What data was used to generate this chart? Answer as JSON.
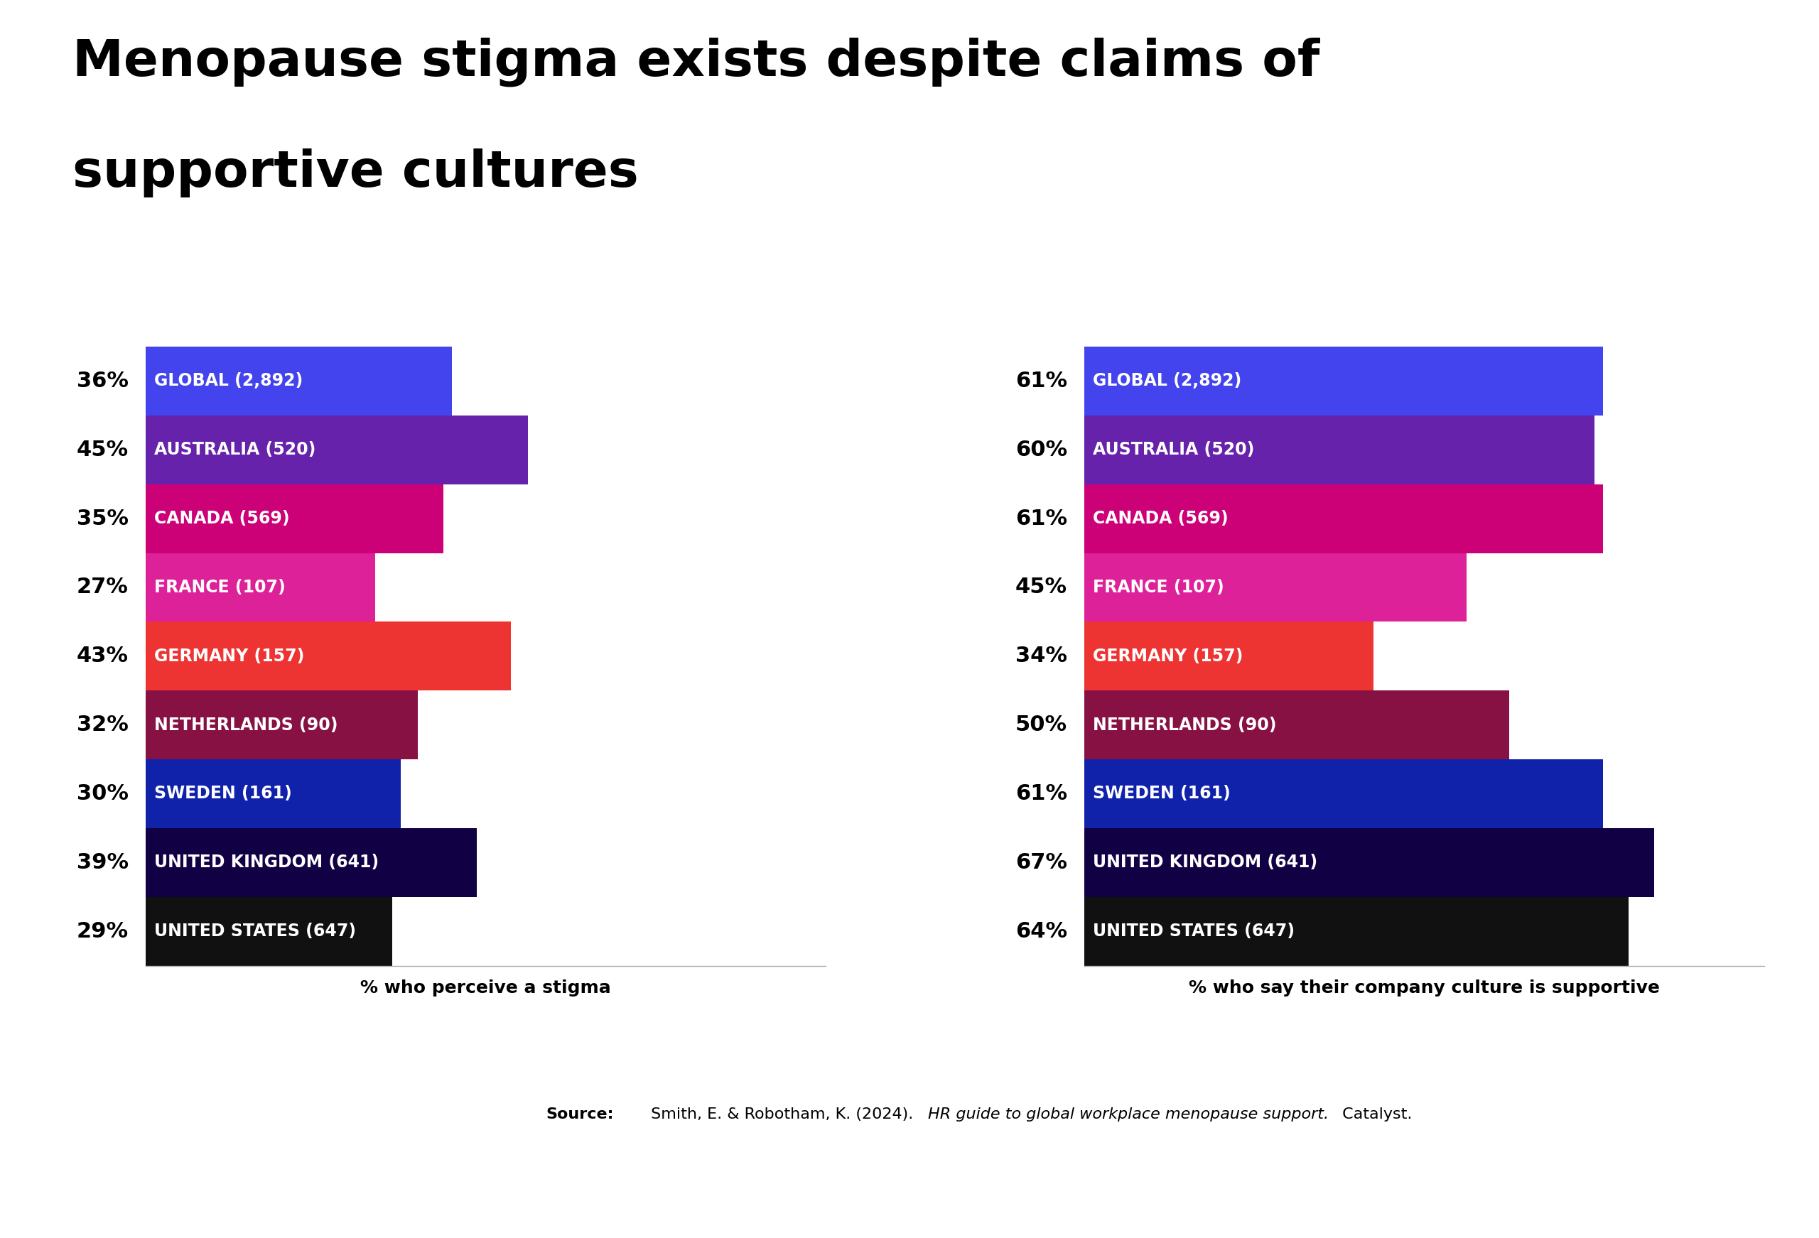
{
  "title_line1": "Menopause stigma exists despite claims of",
  "title_line2": "supportive cultures",
  "categories": [
    "GLOBAL (2,892)",
    "AUSTRALIA (520)",
    "CANADA (569)",
    "FRANCE (107)",
    "GERMANY (157)",
    "NETHERLANDS (90)",
    "SWEDEN (161)",
    "UNITED KINGDOM (641)",
    "UNITED STATES (647)"
  ],
  "stigma_values": [
    36,
    45,
    35,
    27,
    43,
    32,
    30,
    39,
    29
  ],
  "supportive_values": [
    61,
    60,
    61,
    45,
    34,
    50,
    61,
    67,
    64
  ],
  "stigma_labels": [
    "36%",
    "45%",
    "35%",
    "27%",
    "43%",
    "32%",
    "30%",
    "39%",
    "29%"
  ],
  "supportive_labels": [
    "61%",
    "60%",
    "61%",
    "45%",
    "34%",
    "50%",
    "61%",
    "67%",
    "64%"
  ],
  "bar_colors": [
    "#4444EE",
    "#6622AA",
    "#CC0077",
    "#DD2299",
    "#EE3333",
    "#881144",
    "#1122AA",
    "#110044",
    "#111111"
  ],
  "left_xlabel": "% who perceive a stigma",
  "right_xlabel": "% who say their company culture is supportive",
  "background_color": "#FFFFFF",
  "title_fontsize": 52,
  "bar_label_fontsize": 22,
  "category_fontsize": 17,
  "xlabel_fontsize": 18
}
